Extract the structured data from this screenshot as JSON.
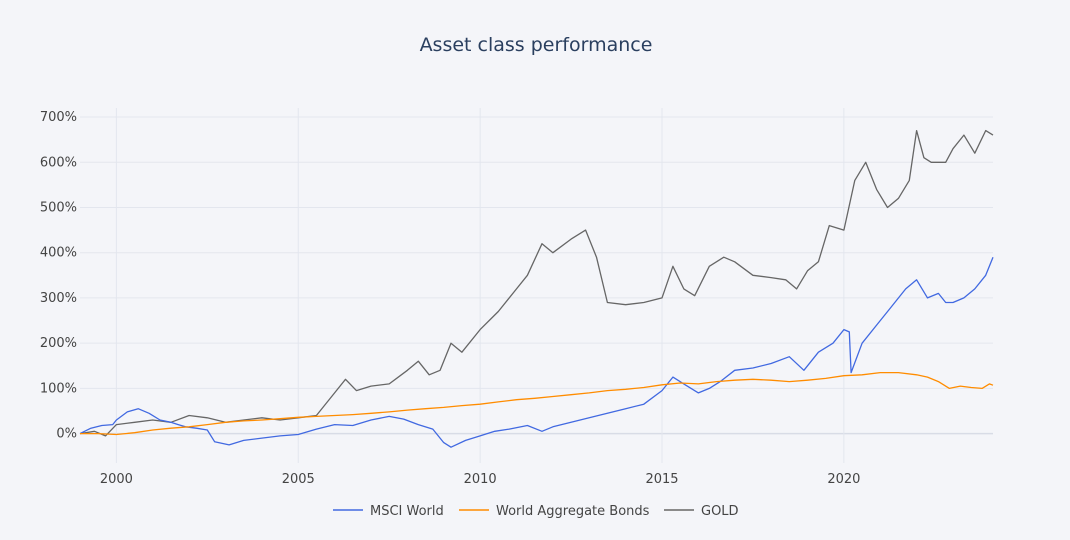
{
  "chart_data": {
    "type": "line",
    "title": "Asset class performance",
    "xlabel": "",
    "ylabel": "",
    "xlim": [
      1999.0,
      2024.1
    ],
    "ylim": [
      -65,
      720
    ],
    "grid": true,
    "legend_position": "bottom-center",
    "x_ticks": [
      2000,
      2005,
      2010,
      2015,
      2020
    ],
    "x_tick_labels": [
      "2000",
      "2005",
      "2010",
      "2015",
      "2020"
    ],
    "y_ticks": [
      0,
      100,
      200,
      300,
      400,
      500,
      600,
      700
    ],
    "y_tick_labels": [
      "0%",
      "100%",
      "200%",
      "300%",
      "400%",
      "500%",
      "600%",
      "700%"
    ],
    "series": [
      {
        "name": "MSCI World",
        "color": "#4169e1",
        "x": [
          1999.0,
          1999.3,
          1999.6,
          1999.9,
          2000.0,
          2000.3,
          2000.6,
          2000.9,
          2001.2,
          2001.5,
          2001.7,
          2001.9,
          2002.2,
          2002.5,
          2002.7,
          2003.1,
          2003.5,
          2004.0,
          2004.5,
          2005.0,
          2005.5,
          2006.0,
          2006.5,
          2007.0,
          2007.5,
          2007.9,
          2008.3,
          2008.7,
          2009.0,
          2009.2,
          2009.6,
          2010.0,
          2010.4,
          2010.8,
          2011.3,
          2011.7,
          2012.0,
          2012.5,
          2013.0,
          2013.5,
          2014.0,
          2014.5,
          2015.0,
          2015.3,
          2015.6,
          2016.0,
          2016.3,
          2016.6,
          2017.0,
          2017.5,
          2018.0,
          2018.5,
          2018.9,
          2019.3,
          2019.7,
          2020.0,
          2020.15,
          2020.2,
          2020.5,
          2020.9,
          2021.3,
          2021.7,
          2022.0,
          2022.3,
          2022.6,
          2022.8,
          2023.0,
          2023.3,
          2023.6,
          2023.9,
          2024.1
        ],
        "y": [
          0,
          12,
          18,
          20,
          30,
          48,
          55,
          45,
          30,
          25,
          20,
          15,
          12,
          8,
          -18,
          -25,
          -15,
          -10,
          -5,
          -2,
          10,
          20,
          18,
          30,
          38,
          32,
          20,
          10,
          -20,
          -30,
          -15,
          -5,
          5,
          10,
          18,
          5,
          15,
          25,
          35,
          45,
          55,
          65,
          95,
          125,
          110,
          90,
          100,
          115,
          140,
          145,
          155,
          170,
          140,
          180,
          200,
          230,
          225,
          135,
          200,
          240,
          280,
          320,
          340,
          300,
          310,
          290,
          290,
          300,
          320,
          350,
          390
        ]
      },
      {
        "name": "World Aggregate Bonds",
        "color": "#ff8c00",
        "x": [
          1999.0,
          1999.5,
          2000.0,
          2000.5,
          2001.0,
          2001.5,
          2002.0,
          2002.5,
          2003.0,
          2003.5,
          2004.0,
          2004.5,
          2005.0,
          2005.5,
          2006.0,
          2006.5,
          2007.0,
          2007.5,
          2008.0,
          2008.5,
          2009.0,
          2009.5,
          2010.0,
          2010.5,
          2011.0,
          2011.5,
          2012.0,
          2012.5,
          2013.0,
          2013.5,
          2014.0,
          2014.5,
          2015.0,
          2015.5,
          2016.0,
          2016.5,
          2017.0,
          2017.5,
          2018.0,
          2018.5,
          2019.0,
          2019.5,
          2020.0,
          2020.5,
          2021.0,
          2021.5,
          2022.0,
          2022.3,
          2022.6,
          2022.9,
          2023.2,
          2023.5,
          2023.8,
          2024.0,
          2024.1
        ],
        "y": [
          0,
          0,
          -2,
          2,
          8,
          12,
          15,
          20,
          25,
          28,
          30,
          33,
          36,
          38,
          40,
          42,
          45,
          48,
          52,
          55,
          58,
          62,
          65,
          70,
          75,
          78,
          82,
          86,
          90,
          95,
          98,
          102,
          108,
          112,
          110,
          115,
          118,
          120,
          118,
          115,
          118,
          122,
          128,
          130,
          135,
          135,
          130,
          125,
          115,
          100,
          105,
          102,
          100,
          110,
          107
        ]
      },
      {
        "name": "GOLD",
        "color": "#666666",
        "x": [
          1999.0,
          1999.4,
          1999.7,
          2000.0,
          2000.5,
          2001.0,
          2001.5,
          2002.0,
          2002.5,
          2003.0,
          2003.5,
          2004.0,
          2004.5,
          2005.0,
          2005.5,
          2006.0,
          2006.3,
          2006.6,
          2007.0,
          2007.5,
          2008.0,
          2008.3,
          2008.6,
          2008.9,
          2009.2,
          2009.5,
          2010.0,
          2010.5,
          2011.0,
          2011.3,
          2011.7,
          2012.0,
          2012.5,
          2012.9,
          2013.2,
          2013.5,
          2014.0,
          2014.5,
          2015.0,
          2015.3,
          2015.6,
          2015.9,
          2016.3,
          2016.7,
          2017.0,
          2017.5,
          2018.0,
          2018.4,
          2018.7,
          2019.0,
          2019.3,
          2019.6,
          2020.0,
          2020.3,
          2020.6,
          2020.9,
          2021.2,
          2021.5,
          2021.8,
          2022.0,
          2022.2,
          2022.4,
          2022.8,
          2023.0,
          2023.3,
          2023.6,
          2023.9,
          2024.1
        ],
        "y": [
          0,
          5,
          -5,
          20,
          25,
          30,
          25,
          40,
          35,
          25,
          30,
          35,
          30,
          35,
          40,
          90,
          120,
          95,
          105,
          110,
          140,
          160,
          130,
          140,
          200,
          180,
          230,
          270,
          320,
          350,
          420,
          400,
          430,
          450,
          390,
          290,
          285,
          290,
          300,
          370,
          320,
          305,
          370,
          390,
          380,
          350,
          345,
          340,
          320,
          360,
          380,
          460,
          450,
          560,
          600,
          540,
          500,
          520,
          560,
          670,
          610,
          600,
          600,
          630,
          660,
          620,
          670,
          660
        ]
      }
    ]
  }
}
